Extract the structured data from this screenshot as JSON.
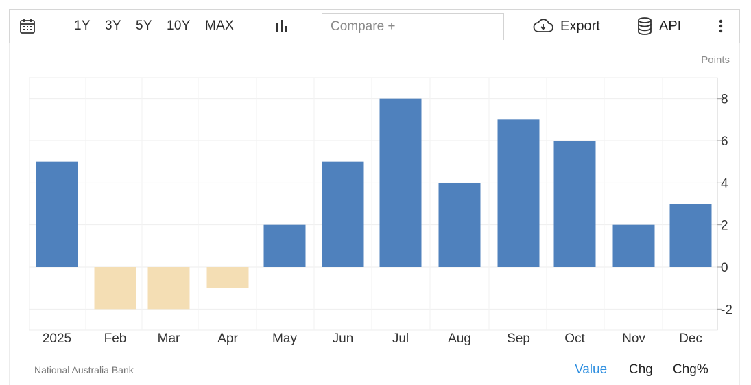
{
  "toolbar": {
    "ranges": [
      "1Y",
      "3Y",
      "5Y",
      "10Y",
      "MAX"
    ],
    "compare_placeholder": "Compare +",
    "export_label": "Export",
    "api_label": "API"
  },
  "unit_label": "Points",
  "source": "National Australia Bank",
  "view_tabs": [
    "Value",
    "Chg",
    "Chg%"
  ],
  "colors": {
    "positive": "#4f81bd",
    "negative": "#f4deb4",
    "active_tab": "#2f8fe0"
  },
  "chart_data": {
    "type": "bar",
    "categories": [
      "2025",
      "Feb",
      "Mar",
      "Apr",
      "May",
      "Jun",
      "Jul",
      "Aug",
      "Sep",
      "Oct",
      "Nov",
      "Dec"
    ],
    "values": [
      5,
      -2,
      -2,
      -1,
      2,
      5,
      8,
      4,
      7,
      6,
      2,
      3
    ],
    "ylim": [
      -3,
      9
    ],
    "yticks": [
      -2,
      0,
      2,
      4,
      6,
      8
    ],
    "ytick_labels": [
      "-2",
      "0",
      "2",
      "4",
      "6",
      "8"
    ],
    "grid": true,
    "title": "",
    "xlabel": "",
    "ylabel": ""
  }
}
